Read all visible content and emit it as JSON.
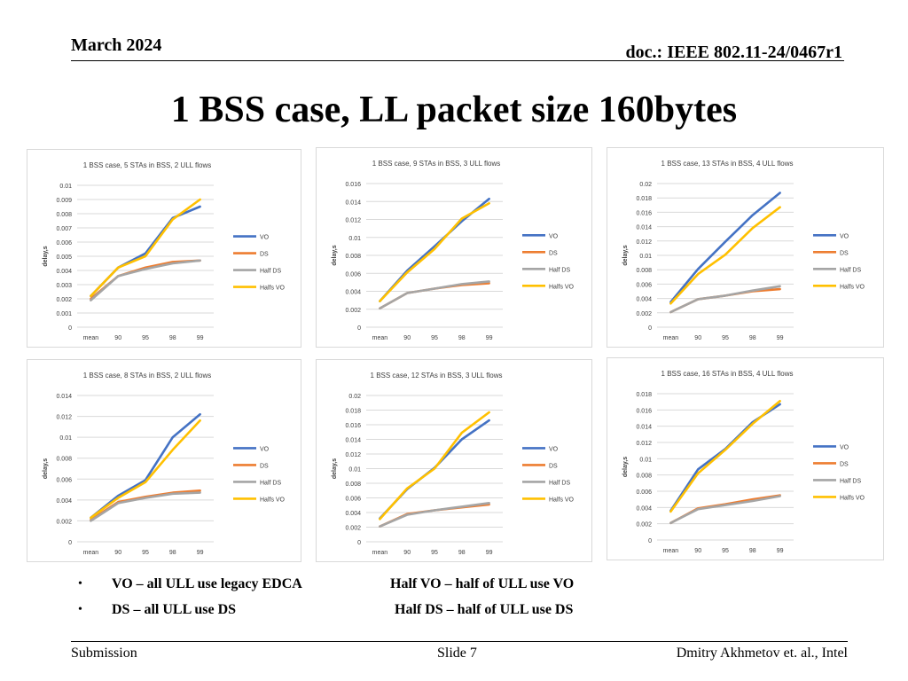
{
  "header": {
    "date": "March 2024",
    "doc": "doc.: IEEE 802.11-24/0467r1"
  },
  "title": "1 BSS case, LL packet size 160bytes",
  "legend_names": [
    "VO",
    "DS",
    "Half DS",
    "Halfs VO"
  ],
  "colors": {
    "VO": "#4472c4",
    "DS": "#ed7d31",
    "Half DS": "#a5a5a5",
    "Halfs VO": "#ffc000"
  },
  "chart_data": [
    {
      "type": "line",
      "title": "1 BSS case, 5 STAs in BSS, 2 ULL flows",
      "ylabel": "delay,s",
      "categories": [
        "mean",
        "90",
        "95",
        "98",
        "99"
      ],
      "ylim": [
        0,
        0.01
      ],
      "ystep": 0.001,
      "yticks_decimals": 3,
      "legend": "right",
      "series": [
        {
          "name": "VO",
          "values": [
            0.0022,
            0.0042,
            0.0052,
            0.0077,
            0.0085
          ]
        },
        {
          "name": "DS",
          "values": [
            0.002,
            0.0036,
            0.0042,
            0.0046,
            0.0047
          ]
        },
        {
          "name": "Half DS",
          "values": [
            0.0019,
            0.0036,
            0.0041,
            0.0045,
            0.0047
          ]
        },
        {
          "name": "Halfs VO",
          "values": [
            0.0022,
            0.0042,
            0.005,
            0.0076,
            0.009
          ]
        }
      ]
    },
    {
      "type": "line",
      "title": "1 BSS case, 9 STAs in BSS, 3 ULL flows",
      "ylabel": "delay,s",
      "categories": [
        "mean",
        "90",
        "95",
        "98",
        "99"
      ],
      "ylim": [
        0,
        0.016
      ],
      "ystep": 0.002,
      "yticks_decimals": 3,
      "legend": "right",
      "series": [
        {
          "name": "VO",
          "values": [
            0.0029,
            0.0063,
            0.009,
            0.0118,
            0.0143
          ]
        },
        {
          "name": "DS",
          "values": [
            0.0021,
            0.0038,
            0.0043,
            0.0047,
            0.0049
          ]
        },
        {
          "name": "Half DS",
          "values": [
            0.0021,
            0.0038,
            0.0043,
            0.0048,
            0.0051
          ]
        },
        {
          "name": "Halfs VO",
          "values": [
            0.0029,
            0.0061,
            0.0087,
            0.0121,
            0.0138
          ]
        }
      ]
    },
    {
      "type": "line",
      "title": "1 BSS case, 13 STAs in BSS, 4 ULL flows",
      "ylabel": "delay,s",
      "categories": [
        "mean",
        "90",
        "95",
        "98",
        "99"
      ],
      "ylim": [
        0,
        0.02
      ],
      "ystep": 0.002,
      "yticks_decimals": 3,
      "legend": "right",
      "series": [
        {
          "name": "VO",
          "values": [
            0.0035,
            0.0081,
            0.0119,
            0.0156,
            0.0187
          ]
        },
        {
          "name": "DS",
          "values": [
            0.0021,
            0.0039,
            0.0044,
            0.005,
            0.0053
          ]
        },
        {
          "name": "Half DS",
          "values": [
            0.0021,
            0.0039,
            0.0044,
            0.0051,
            0.0057
          ]
        },
        {
          "name": "Halfs VO",
          "values": [
            0.0033,
            0.0074,
            0.0101,
            0.0138,
            0.0167
          ]
        }
      ]
    },
    {
      "type": "line",
      "title": "1 BSS case, 8 STAs in BSS, 2 ULL flows",
      "ylabel": "delay,s",
      "categories": [
        "mean",
        "90",
        "95",
        "98",
        "99"
      ],
      "ylim": [
        0,
        0.014
      ],
      "ystep": 0.002,
      "yticks_decimals": 3,
      "legend": "right",
      "series": [
        {
          "name": "VO",
          "values": [
            0.0023,
            0.0044,
            0.0059,
            0.01,
            0.0122
          ]
        },
        {
          "name": "DS",
          "values": [
            0.0021,
            0.0038,
            0.0043,
            0.0047,
            0.0049
          ]
        },
        {
          "name": "Half DS",
          "values": [
            0.002,
            0.0037,
            0.0042,
            0.0046,
            0.0047
          ]
        },
        {
          "name": "Halfs VO",
          "values": [
            0.0023,
            0.0042,
            0.0057,
            0.0088,
            0.0116
          ]
        }
      ]
    },
    {
      "type": "line",
      "title": "1 BSS case, 12 STAs in BSS, 3 ULL flows",
      "ylabel": "delay,s",
      "categories": [
        "mean",
        "90",
        "95",
        "98",
        "99"
      ],
      "ylim": [
        0,
        0.02
      ],
      "ystep": 0.002,
      "yticks_decimals": 3,
      "legend": "right",
      "series": [
        {
          "name": "VO",
          "values": [
            0.0032,
            0.0072,
            0.0101,
            0.014,
            0.0166
          ]
        },
        {
          "name": "DS",
          "values": [
            0.0021,
            0.0038,
            0.0043,
            0.0047,
            0.0051
          ]
        },
        {
          "name": "Half DS",
          "values": [
            0.0021,
            0.0037,
            0.0043,
            0.0048,
            0.0053
          ]
        },
        {
          "name": "Halfs VO",
          "values": [
            0.0031,
            0.0073,
            0.01,
            0.0149,
            0.0177
          ]
        }
      ]
    },
    {
      "type": "line",
      "title": "1 BSS case, 16 STAs in BSS, 4 ULL flows",
      "ylabel": "delay,s",
      "categories": [
        "mean",
        "90",
        "95",
        "98",
        "99"
      ],
      "ylim": [
        0,
        0.018
      ],
      "ystep": 0.002,
      "yticks_decimals": 3,
      "legend": "right",
      "series": [
        {
          "name": "VO",
          "values": [
            0.0036,
            0.0087,
            0.0112,
            0.0145,
            0.0167
          ]
        },
        {
          "name": "DS",
          "values": [
            0.0021,
            0.0039,
            0.0044,
            0.005,
            0.0055
          ]
        },
        {
          "name": "Half DS",
          "values": [
            0.0021,
            0.0038,
            0.0043,
            0.0048,
            0.0054
          ]
        },
        {
          "name": "Halfs VO",
          "values": [
            0.0035,
            0.0082,
            0.0111,
            0.0143,
            0.0171
          ]
        }
      ]
    }
  ],
  "notes": {
    "bullet": "•",
    "vo": "VO – all ULL use legacy EDCA",
    "ds": "DS – all ULL use DS",
    "halfvo": "Half VO – half of ULL use VO",
    "halfds": "Half DS – half of ULL use DS"
  },
  "footer": {
    "left": "Submission",
    "center": "Slide 7",
    "right": "Dmitry Akhmetov et. al., Intel"
  }
}
